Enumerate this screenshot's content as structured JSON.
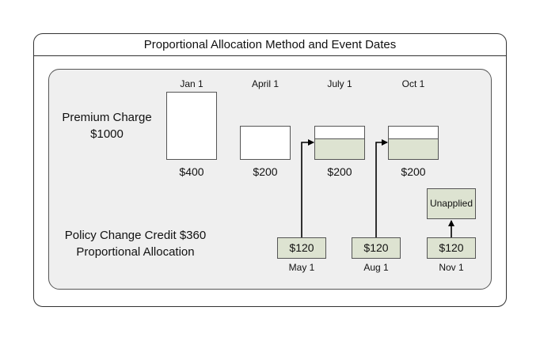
{
  "title": "Proportional Allocation Method and Event Dates",
  "premium": {
    "label_line1": "Premium Charge",
    "label_line2": "$1000",
    "periods": [
      {
        "date": "Jan 1",
        "amount": "$400"
      },
      {
        "date": "April 1",
        "amount": "$200"
      },
      {
        "date": "July 1",
        "amount": "$200"
      },
      {
        "date": "Oct 1",
        "amount": "$200"
      }
    ]
  },
  "credit": {
    "label_line1": "Policy Change Credit $360",
    "label_line2": "Proportional Allocation",
    "items": [
      {
        "amount": "$120",
        "date": "May 1"
      },
      {
        "amount": "$120",
        "date": "Aug 1"
      },
      {
        "amount": "$120",
        "date": "Nov 1"
      }
    ],
    "unapplied_label": "Unapplied"
  },
  "colors": {
    "applied_fill": "#dde3d1",
    "border": "#555555",
    "panel_bg": "#efefef"
  }
}
